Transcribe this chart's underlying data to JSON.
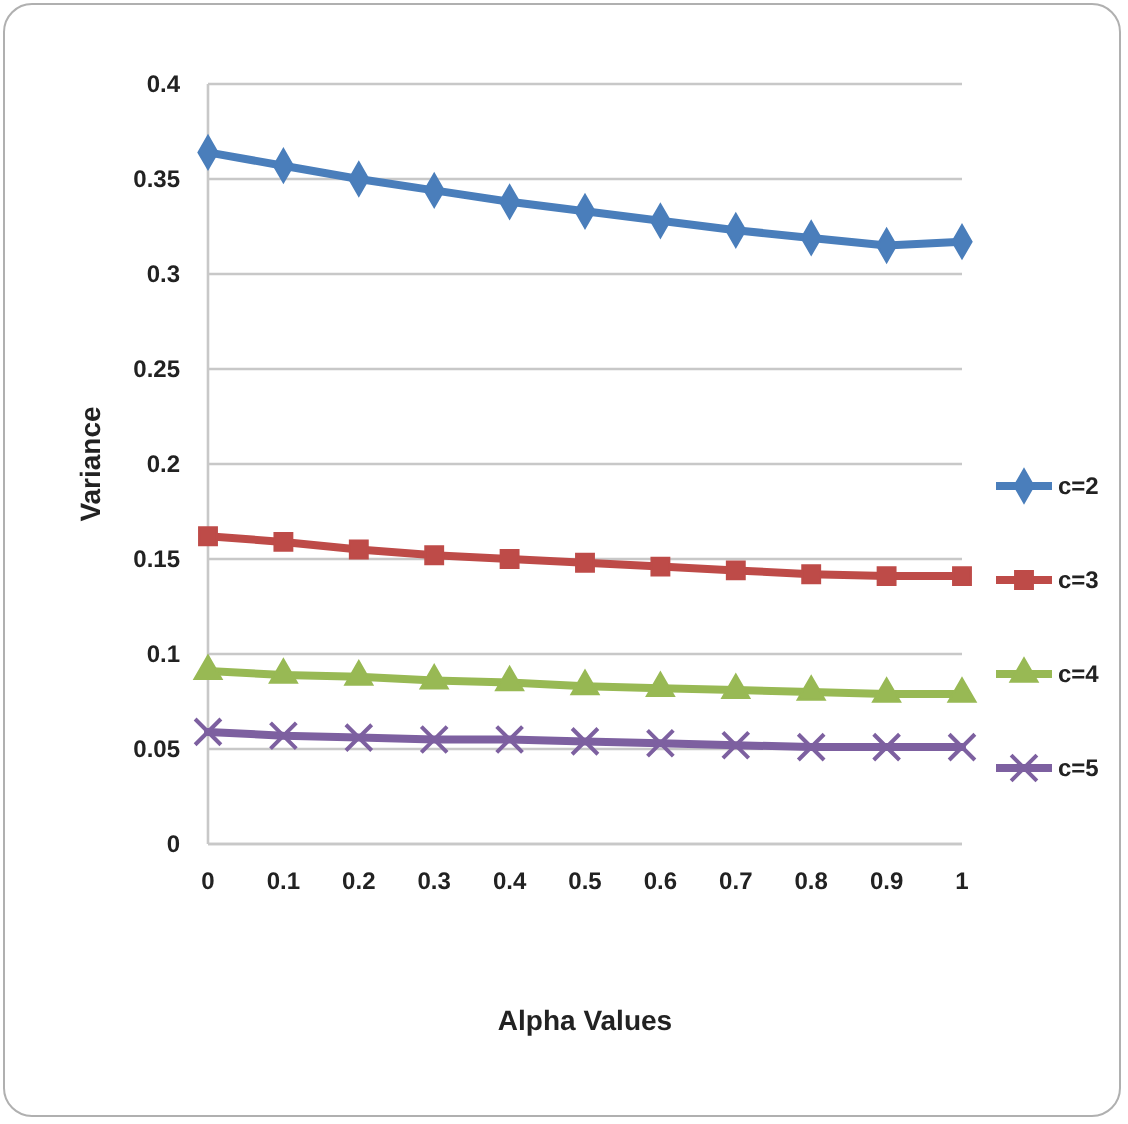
{
  "chart_data": {
    "type": "line",
    "xlabel": "Alpha Values",
    "ylabel": "Variance",
    "xlim": [
      0,
      1
    ],
    "xticks": [
      0,
      0.1,
      0.2,
      0.3,
      0.4,
      0.5,
      0.6,
      0.7,
      0.8,
      0.9,
      1
    ],
    "ylim": [
      0,
      0.4
    ],
    "yticks": [
      0,
      0.05,
      0.1,
      0.15,
      0.2,
      0.25,
      0.3,
      0.35,
      0.4
    ],
    "grid": "y",
    "legend": "right",
    "x": [
      0,
      0.1,
      0.2,
      0.3,
      0.4,
      0.5,
      0.6,
      0.7,
      0.8,
      0.9,
      1
    ],
    "series": [
      {
        "name": "c=2",
        "color": "#4a7ebb",
        "marker": "diamond",
        "values": [
          0.364,
          0.357,
          0.35,
          0.344,
          0.338,
          0.333,
          0.328,
          0.323,
          0.319,
          0.315,
          0.317
        ]
      },
      {
        "name": "c=3",
        "color": "#be4b48",
        "marker": "square",
        "values": [
          0.162,
          0.159,
          0.155,
          0.152,
          0.15,
          0.148,
          0.146,
          0.144,
          0.142,
          0.141,
          0.141
        ]
      },
      {
        "name": "c=4",
        "color": "#98b954",
        "marker": "triangle",
        "values": [
          0.091,
          0.089,
          0.088,
          0.086,
          0.085,
          0.083,
          0.082,
          0.081,
          0.08,
          0.079,
          0.079
        ]
      },
      {
        "name": "c=5",
        "color": "#7d60a0",
        "marker": "cross",
        "values": [
          0.059,
          0.057,
          0.056,
          0.055,
          0.055,
          0.054,
          0.053,
          0.052,
          0.051,
          0.051,
          0.051
        ]
      }
    ]
  }
}
